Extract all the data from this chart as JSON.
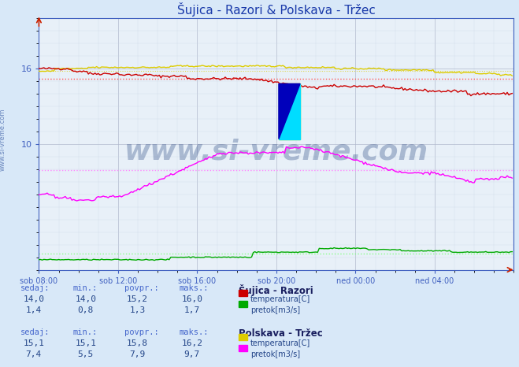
{
  "title": "Šujica - Razori & Polskava - Tržec",
  "bg_color": "#d8e8f8",
  "plot_bg_color": "#e8f0f8",
  "xlim": [
    0,
    288
  ],
  "ylim": [
    0,
    20
  ],
  "xtick_positions": [
    0,
    48,
    96,
    144,
    192,
    240
  ],
  "xtick_labels": [
    "sob 08:00",
    "sob 12:00",
    "sob 16:00",
    "sob 20:00",
    "ned 00:00",
    "ned 04:00"
  ],
  "title_color": "#1a3aaa",
  "title_fontsize": 11,
  "axis_color": "#4060c0",
  "tick_label_color": "#1030a0",
  "watermark": "www.si-vreme.com",
  "watermark_color": "#1a3a7a",
  "watermark_alpha": 0.3,
  "line_sujica_temp_color": "#cc0000",
  "line_sujica_temp_avg": 15.2,
  "line_sujica_pretok_color": "#00aa00",
  "line_sujica_pretok_avg": 1.3,
  "line_polskava_temp_color": "#ddcc00",
  "line_polskava_temp_avg": 15.8,
  "line_polskava_pretok_color": "#ff00ff",
  "line_polskava_pretok_avg": 7.9,
  "avg_line_sujica_temp_color": "#ff5555",
  "avg_line_polskava_pretok_color": "#ff88ff",
  "avg_line_sujica_pretok_color": "#88ff88",
  "table_header_color": "#4466cc",
  "table_value_color": "#224488",
  "station1_name": "Šujica - Razori",
  "station2_name": "Polskava - Tržec",
  "s1_sedaj_temp": "14,0",
  "s1_min_temp": "14,0",
  "s1_povpr_temp": "15,2",
  "s1_maks_temp": "16,0",
  "s1_sedaj_pretok": "1,4",
  "s1_min_pretok": "0,8",
  "s1_povpr_pretok": "1,3",
  "s1_maks_pretok": "1,7",
  "s2_sedaj_temp": "15,1",
  "s2_min_temp": "15,1",
  "s2_povpr_temp": "15,8",
  "s2_maks_temp": "16,2",
  "s2_sedaj_pretok": "7,4",
  "s2_min_pretok": "5,5",
  "s2_povpr_pretok": "7,9",
  "s2_maks_pretok": "9,7"
}
